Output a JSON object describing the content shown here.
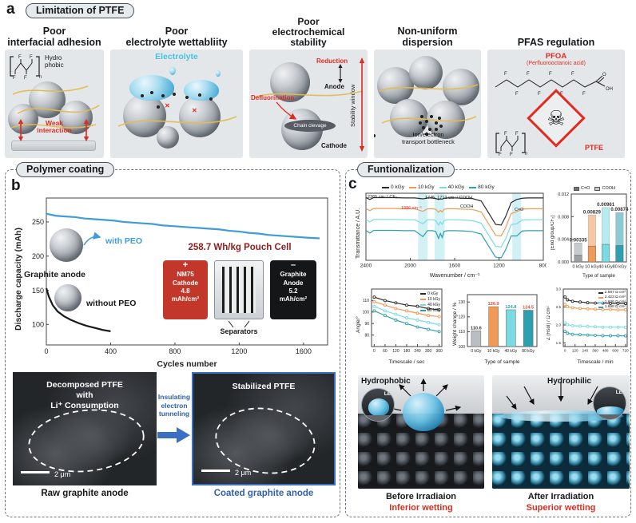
{
  "colors": {
    "accent_red": "#e02b1f",
    "blue": "#3f9bd9",
    "dark_blue": "#2f5fae",
    "cyan": "#4fbede",
    "pouch_red": "#c2372a",
    "dose": [
      "#2b2b2b",
      "#f09a56",
      "#7bdbe3",
      "#2e9fae"
    ],
    "endgroup_legend": [
      "#6f747a",
      "#c3c8cd"
    ],
    "band": "#c2ecf0"
  },
  "glyphs": {
    "f": "F",
    "o": "O",
    "oh": "OH",
    "n": "n",
    "skull": "☠",
    "plus": "+",
    "minus": "–",
    "cross": "✕"
  },
  "panel_a": {
    "label": "a",
    "title": "Limitation of PTFE",
    "col1": {
      "h1": "Poor",
      "h2": "interfacial adhesion",
      "hydro": "Hydro",
      "phobic": "phobic",
      "weak1": "Weak",
      "weak2": "interaction"
    },
    "col2": {
      "h1": "Poor",
      "h2": "electrolyte wettabliity",
      "electrolyte": "Electrolyte"
    },
    "col3": {
      "h1": "Poor",
      "h2": "electrochemical",
      "h3": "stability",
      "reduction": "Reduction",
      "anode": "Anode",
      "defluorination": "Defluorination",
      "chain": "Chain clevage",
      "cathode": "Cathode",
      "window": "Stability window"
    },
    "col4": {
      "h1": "Non-uniform",
      "h2": "dispersion",
      "b1": "Ion/electron",
      "b2": "transport bottleneck"
    },
    "col5": {
      "h1": "PFAS regulation",
      "pfoa": "PFOA",
      "pfoa_full": "(Perfluorooctanoic acid)",
      "ptfe": "PTFE"
    }
  },
  "panel_b": {
    "label": "b",
    "title": "Polymer coating",
    "ylabel": "Discharge capacity (mAh)",
    "xlabel": "Cycles number",
    "graphite_anode": "Graphite anode",
    "pouch_title": "258.7 Wh/kg Pouch Cell",
    "cathode": {
      "sign": "+",
      "l1": "NM75",
      "l2": "Cathode",
      "l3": "4.8",
      "l4": "mAh/cm²"
    },
    "anode": {
      "sign": "–",
      "l1": "Graphite",
      "l2": "Anode",
      "l3": "5.2",
      "l4": "mAh/cm²"
    },
    "separators": "Separators",
    "arrow": {
      "t1": "Insulating",
      "t2": "electron",
      "t3": "tunneling"
    },
    "sem_left": {
      "t1": "Decomposed PTFE",
      "t2": "with",
      "t3": "Li⁺ Consumption",
      "scale": "2 μm",
      "caption": "Raw graphite anode"
    },
    "sem_right": {
      "t1": "Stabilized PTFE",
      "scale": "2 μm",
      "caption": "Coated graphite anode"
    }
  },
  "panel_c": {
    "label": "c",
    "title": "Funtionalization",
    "ftir": {
      "ylabel": "Transmittance / A.U.",
      "xlabel": "Wavenumber / cm⁻¹",
      "a1": "2365 cm⁻¹ CF₃",
      "a2": "1886 cm⁻¹",
      "a3": "1745, 1712 cm⁻¹ COOH",
      "a4": "COOH",
      "a5": "C=O"
    },
    "endgroup": {
      "ylabel": "[End group/CF₂]",
      "xlabel": "Type of sample",
      "leg1": "C=O",
      "leg2": "COOH"
    },
    "angle": {
      "ylabel": "Angle/°",
      "xlabel": "Timescale / sec"
    },
    "weight": {
      "ylabel": "Weight change / %",
      "xlabel": "Type of sample"
    },
    "resistance": {
      "ylabel": "Z (Rsol) / Ω cm²",
      "xlabel": "Timescale / min",
      "legend": [
        "2.597 Ω cm²",
        "2.423 Ω cm²",
        "1.936 Ω cm²",
        "1.698 Ω cm²"
      ]
    },
    "wetting": {
      "hydrophobic": "Hydrophobic",
      "hydrophilic": "Hydrophilic",
      "le": "LE",
      "before": "Before Irradiaion",
      "inferior": "Inferior wetting",
      "after": "After Irradiation",
      "superior": "Superior wetting"
    }
  },
  "chart_data": [
    {
      "id": "cycling",
      "type": "line",
      "xlim": [
        0,
        1750
      ],
      "ylim": [
        70,
        285
      ],
      "xticks": [
        0,
        400,
        800,
        1200,
        1600
      ],
      "yticks": [
        100,
        150,
        200,
        250
      ],
      "series": [
        {
          "name": "with PEO",
          "color": "#3f9bd9",
          "width": 2.2,
          "points": [
            [
              0,
              262
            ],
            [
              60,
              259
            ],
            [
              120,
              258
            ],
            [
              180,
              257
            ],
            [
              240,
              255
            ],
            [
              300,
              254
            ],
            [
              360,
              253
            ],
            [
              420,
              252
            ],
            [
              480,
              250
            ],
            [
              540,
              249
            ],
            [
              600,
              248
            ],
            [
              660,
              247
            ],
            [
              720,
              245
            ],
            [
              780,
              244
            ],
            [
              840,
              243
            ],
            [
              900,
              242
            ],
            [
              960,
              241
            ],
            [
              1020,
              240
            ],
            [
              1080,
              239
            ],
            [
              1140,
              237
            ],
            [
              1200,
              236
            ],
            [
              1260,
              234
            ],
            [
              1320,
              233
            ],
            [
              1380,
              231
            ],
            [
              1440,
              230
            ],
            [
              1500,
              229
            ],
            [
              1560,
              228
            ],
            [
              1620,
              227
            ],
            [
              1700,
              226
            ]
          ]
        },
        {
          "name": "without PEO",
          "color": "#1a1a1a",
          "width": 2.2,
          "points": [
            [
              0,
              153
            ],
            [
              15,
              141
            ],
            [
              40,
              128
            ],
            [
              70,
              119
            ],
            [
              110,
              112
            ],
            [
              150,
              107
            ],
            [
              200,
              102
            ],
            [
              250,
              98
            ],
            [
              300,
              95
            ],
            [
              350,
              92
            ],
            [
              400,
              90
            ]
          ]
        }
      ]
    },
    {
      "id": "ftir",
      "type": "line",
      "xlim": [
        2400,
        800
      ],
      "ylim": [
        0,
        2.15
      ],
      "xticks": [
        2400,
        2000,
        1600,
        1200,
        800
      ],
      "bands": [
        [
          1930,
          1845
        ],
        [
          1780,
          1690
        ],
        [
          1080,
          1000
        ]
      ],
      "band_color": "#c2ecf0",
      "x": [
        2400,
        2365,
        2330,
        2250,
        2150,
        2050,
        1960,
        1886,
        1845,
        1800,
        1770,
        1745,
        1728,
        1712,
        1695,
        1660,
        1600,
        1520,
        1440,
        1360,
        1290,
        1230,
        1180,
        1140,
        1090,
        1040,
        990,
        940,
        880,
        800
      ],
      "series": [
        {
          "name": "0 kGy",
          "color": "#2b2b2b",
          "yoffset": 1.05,
          "y": [
            0.96,
            0.9,
            0.96,
            0.96,
            0.96,
            0.95,
            0.95,
            0.92,
            0.95,
            0.95,
            0.93,
            0.9,
            0.92,
            0.91,
            0.94,
            0.95,
            0.95,
            0.94,
            0.93,
            0.85,
            0.45,
            0.1,
            0.08,
            0.35,
            0.8,
            0.9,
            0.94,
            0.95,
            0.95,
            0.95
          ]
        },
        {
          "name": "10 kGy",
          "color": "#f09a56",
          "yoffset": 0.7,
          "y": [
            0.96,
            0.89,
            0.96,
            0.96,
            0.96,
            0.95,
            0.95,
            0.87,
            0.95,
            0.95,
            0.93,
            0.84,
            0.9,
            0.85,
            0.94,
            0.95,
            0.95,
            0.94,
            0.93,
            0.85,
            0.45,
            0.1,
            0.08,
            0.35,
            0.8,
            0.86,
            0.94,
            0.95,
            0.95,
            0.95
          ]
        },
        {
          "name": "40 kGy",
          "color": "#7bdbe3",
          "yoffset": 0.35,
          "y": [
            0.96,
            0.88,
            0.96,
            0.96,
            0.96,
            0.95,
            0.95,
            0.82,
            0.95,
            0.95,
            0.92,
            0.78,
            0.88,
            0.8,
            0.93,
            0.95,
            0.95,
            0.94,
            0.92,
            0.84,
            0.44,
            0.1,
            0.08,
            0.34,
            0.79,
            0.82,
            0.94,
            0.95,
            0.95,
            0.95
          ]
        },
        {
          "name": "80 kGy",
          "color": "#2e9fae",
          "yoffset": 0,
          "y": [
            0.96,
            0.87,
            0.96,
            0.96,
            0.96,
            0.95,
            0.95,
            0.76,
            0.95,
            0.95,
            0.92,
            0.7,
            0.86,
            0.73,
            0.93,
            0.95,
            0.95,
            0.94,
            0.92,
            0.84,
            0.44,
            0.1,
            0.08,
            0.34,
            0.78,
            0.78,
            0.94,
            0.95,
            0.95,
            0.95
          ]
        }
      ]
    },
    {
      "id": "endgroup",
      "type": "stackbar",
      "categories": [
        "0 kGy",
        "10 kGy",
        "40 kGy",
        "80 kGy"
      ],
      "series": [
        {
          "name": "C=O",
          "values": [
            0.0012,
            0.0028,
            0.0031,
            0.0029
          ]
        },
        {
          "name": "COOH",
          "values": [
            0.00215,
            0.00549,
            0.00651,
            0.00584
          ]
        }
      ],
      "value_labels": [
        "0.00335",
        "0.00829",
        "0.00961",
        "0.00874"
      ],
      "ylim": [
        0,
        0.012
      ],
      "yticks": [
        0,
        0.004,
        0.008,
        0.012
      ],
      "ytick_labels": [
        "0.000",
        "0.004",
        "0.008",
        "0.012"
      ],
      "colors": [
        "#9aa0a6",
        "#f09a56",
        "#7bdbe3",
        "#2e9fae"
      ]
    },
    {
      "id": "angle",
      "type": "line",
      "xlim": [
        -15,
        375
      ],
      "ylim": [
        70,
        120
      ],
      "xticks": [
        0,
        60,
        120,
        180,
        240,
        300,
        360
      ],
      "yticks": [
        80,
        90,
        100,
        110
      ],
      "series": [
        {
          "name": "0 kGy",
          "color": "#2b2b2b",
          "marker": true,
          "points": [
            [
              0,
              113
            ],
            [
              60,
              110
            ],
            [
              120,
              108
            ],
            [
              180,
              106
            ],
            [
              240,
              105
            ],
            [
              300,
              103
            ],
            [
              360,
              102
            ]
          ]
        },
        {
          "name": "10 kGy",
          "color": "#f09a56",
          "marker": true,
          "points": [
            [
              0,
              109
            ],
            [
              60,
              106
            ],
            [
              120,
              103
            ],
            [
              180,
              101
            ],
            [
              240,
              99
            ],
            [
              300,
              97
            ],
            [
              360,
              96
            ]
          ]
        },
        {
          "name": "40 kGy",
          "color": "#7bdbe3",
          "marker": true,
          "points": [
            [
              0,
              105
            ],
            [
              60,
              101
            ],
            [
              120,
              98
            ],
            [
              180,
              95
            ],
            [
              240,
              93
            ],
            [
              300,
              91
            ],
            [
              360,
              89
            ]
          ]
        },
        {
          "name": "80 kGy",
          "color": "#2e9fae",
          "marker": true,
          "points": [
            [
              0,
              101
            ],
            [
              60,
              97
            ],
            [
              120,
              93
            ],
            [
              180,
              90
            ],
            [
              240,
              87
            ],
            [
              300,
              85
            ],
            [
              360,
              83
            ]
          ]
        }
      ]
    },
    {
      "id": "weight",
      "type": "bar",
      "categories": [
        "0 kGy",
        "10 kGy",
        "40 kGy",
        "80 kGy"
      ],
      "values": [
        110.6,
        126.9,
        124.8,
        124.5
      ],
      "value_labels": [
        "110.6",
        "126.9",
        "124.8",
        "124.5"
      ],
      "label_colors": [
        "#333333",
        "#e04b2f",
        "#2e9fae",
        "#e04b2f"
      ],
      "ylim": [
        100,
        135
      ],
      "yticks": [
        100,
        110,
        120,
        130
      ],
      "colors": [
        "#b9bec3",
        "#f09a56",
        "#7bdbe3",
        "#2e9fae"
      ]
    },
    {
      "id": "resistance",
      "type": "line",
      "xlim": [
        -20,
        740
      ],
      "ylim": [
        1.4,
        3.0
      ],
      "xticks": [
        0,
        120,
        240,
        360,
        480,
        600,
        720
      ],
      "yticks": [
        1.5,
        2.0,
        2.5,
        3.0
      ],
      "ytick_labels": [
        "1.5",
        "2.0",
        "2.5",
        "3.0"
      ],
      "series": [
        {
          "name": "0 kGy",
          "color": "#2b2b2b",
          "marker": true,
          "points": [
            [
              0,
              2.78
            ],
            [
              30,
              2.7
            ],
            [
              90,
              2.66
            ],
            [
              180,
              2.64
            ],
            [
              270,
              2.62
            ],
            [
              360,
              2.61
            ],
            [
              450,
              2.61
            ],
            [
              540,
              2.6
            ],
            [
              630,
              2.6
            ],
            [
              720,
              2.597
            ]
          ]
        },
        {
          "name": "10 kGy",
          "color": "#f09a56",
          "marker": true,
          "points": [
            [
              0,
              2.57
            ],
            [
              30,
              2.51
            ],
            [
              90,
              2.48
            ],
            [
              180,
              2.46
            ],
            [
              270,
              2.45
            ],
            [
              360,
              2.44
            ],
            [
              450,
              2.43
            ],
            [
              540,
              2.43
            ],
            [
              630,
              2.42
            ],
            [
              720,
              2.423
            ]
          ]
        },
        {
          "name": "40 kGy",
          "color": "#7bdbe3",
          "marker": true,
          "points": [
            [
              0,
              2.06
            ],
            [
              30,
              2.01
            ],
            [
              90,
              1.98
            ],
            [
              180,
              1.97
            ],
            [
              270,
              1.96
            ],
            [
              360,
              1.95
            ],
            [
              450,
              1.94
            ],
            [
              540,
              1.94
            ],
            [
              630,
              1.94
            ],
            [
              720,
              1.936
            ]
          ]
        },
        {
          "name": "80 kGy",
          "color": "#2e9fae",
          "marker": true,
          "points": [
            [
              0,
              1.82
            ],
            [
              30,
              1.77
            ],
            [
              90,
              1.74
            ],
            [
              180,
              1.73
            ],
            [
              270,
              1.72
            ],
            [
              360,
              1.71
            ],
            [
              450,
              1.7
            ],
            [
              540,
              1.7
            ],
            [
              630,
              1.7
            ],
            [
              720,
              1.698
            ]
          ]
        }
      ]
    }
  ]
}
